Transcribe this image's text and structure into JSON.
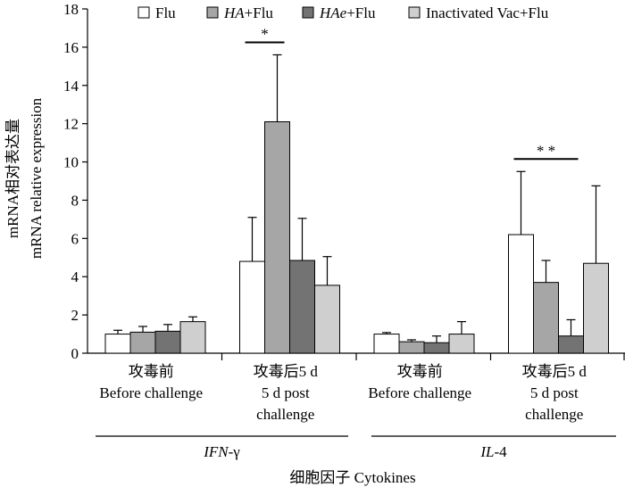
{
  "chart_data": {
    "type": "bar",
    "ylim": [
      0,
      18
    ],
    "yticks": [
      "0",
      "2",
      "4",
      "6",
      "8",
      "10",
      "12",
      "14",
      "16",
      "18"
    ],
    "ylabel_cn": "mRNA相对表达量",
    "ylabel_en": "mRNA relative expression",
    "xlabel": "细胞因子 Cytokines",
    "series": [
      {
        "name": "Flu",
        "color": "#ffffff"
      },
      {
        "name_italic": "HA",
        "name_rest": "+Flu",
        "color": "#a6a6a6"
      },
      {
        "name_italic": "HAe",
        "name_rest": "+Flu",
        "color": "#737373"
      },
      {
        "name": "Inactivated Vac+Flu",
        "color": "#cfcfcf"
      }
    ],
    "groups": [
      {
        "label_cn": "攻毒前",
        "label_en": [
          "Before challenge"
        ],
        "values": [
          1.0,
          1.1,
          1.15,
          1.65
        ],
        "errors": [
          0.2,
          0.3,
          0.35,
          0.25
        ]
      },
      {
        "label_cn": "攻毒后5 d",
        "label_en": [
          "5 d post",
          "challenge"
        ],
        "values": [
          4.8,
          12.1,
          4.85,
          3.55
        ],
        "errors": [
          2.3,
          3.5,
          2.2,
          1.5
        ]
      },
      {
        "label_cn": "攻毒前",
        "label_en": [
          "Before challenge"
        ],
        "values": [
          1.0,
          0.6,
          0.55,
          1.0
        ],
        "errors": [
          0.08,
          0.1,
          0.35,
          0.65
        ]
      },
      {
        "label_cn": "攻毒后5 d",
        "label_en": [
          "5 d post",
          "challenge"
        ],
        "values": [
          6.2,
          3.7,
          0.9,
          4.7
        ],
        "errors": [
          3.3,
          1.15,
          0.85,
          4.05
        ]
      }
    ],
    "cytokines": [
      {
        "italic": "IFN",
        "rest": "-γ"
      },
      {
        "italic": "IL",
        "rest": "-4"
      }
    ],
    "significance": [
      {
        "label": "*",
        "group": 1,
        "from_series": 0,
        "to_series": 1
      },
      {
        "label": "* *",
        "group": 3,
        "from_series": 0,
        "to_series": 2
      }
    ]
  }
}
